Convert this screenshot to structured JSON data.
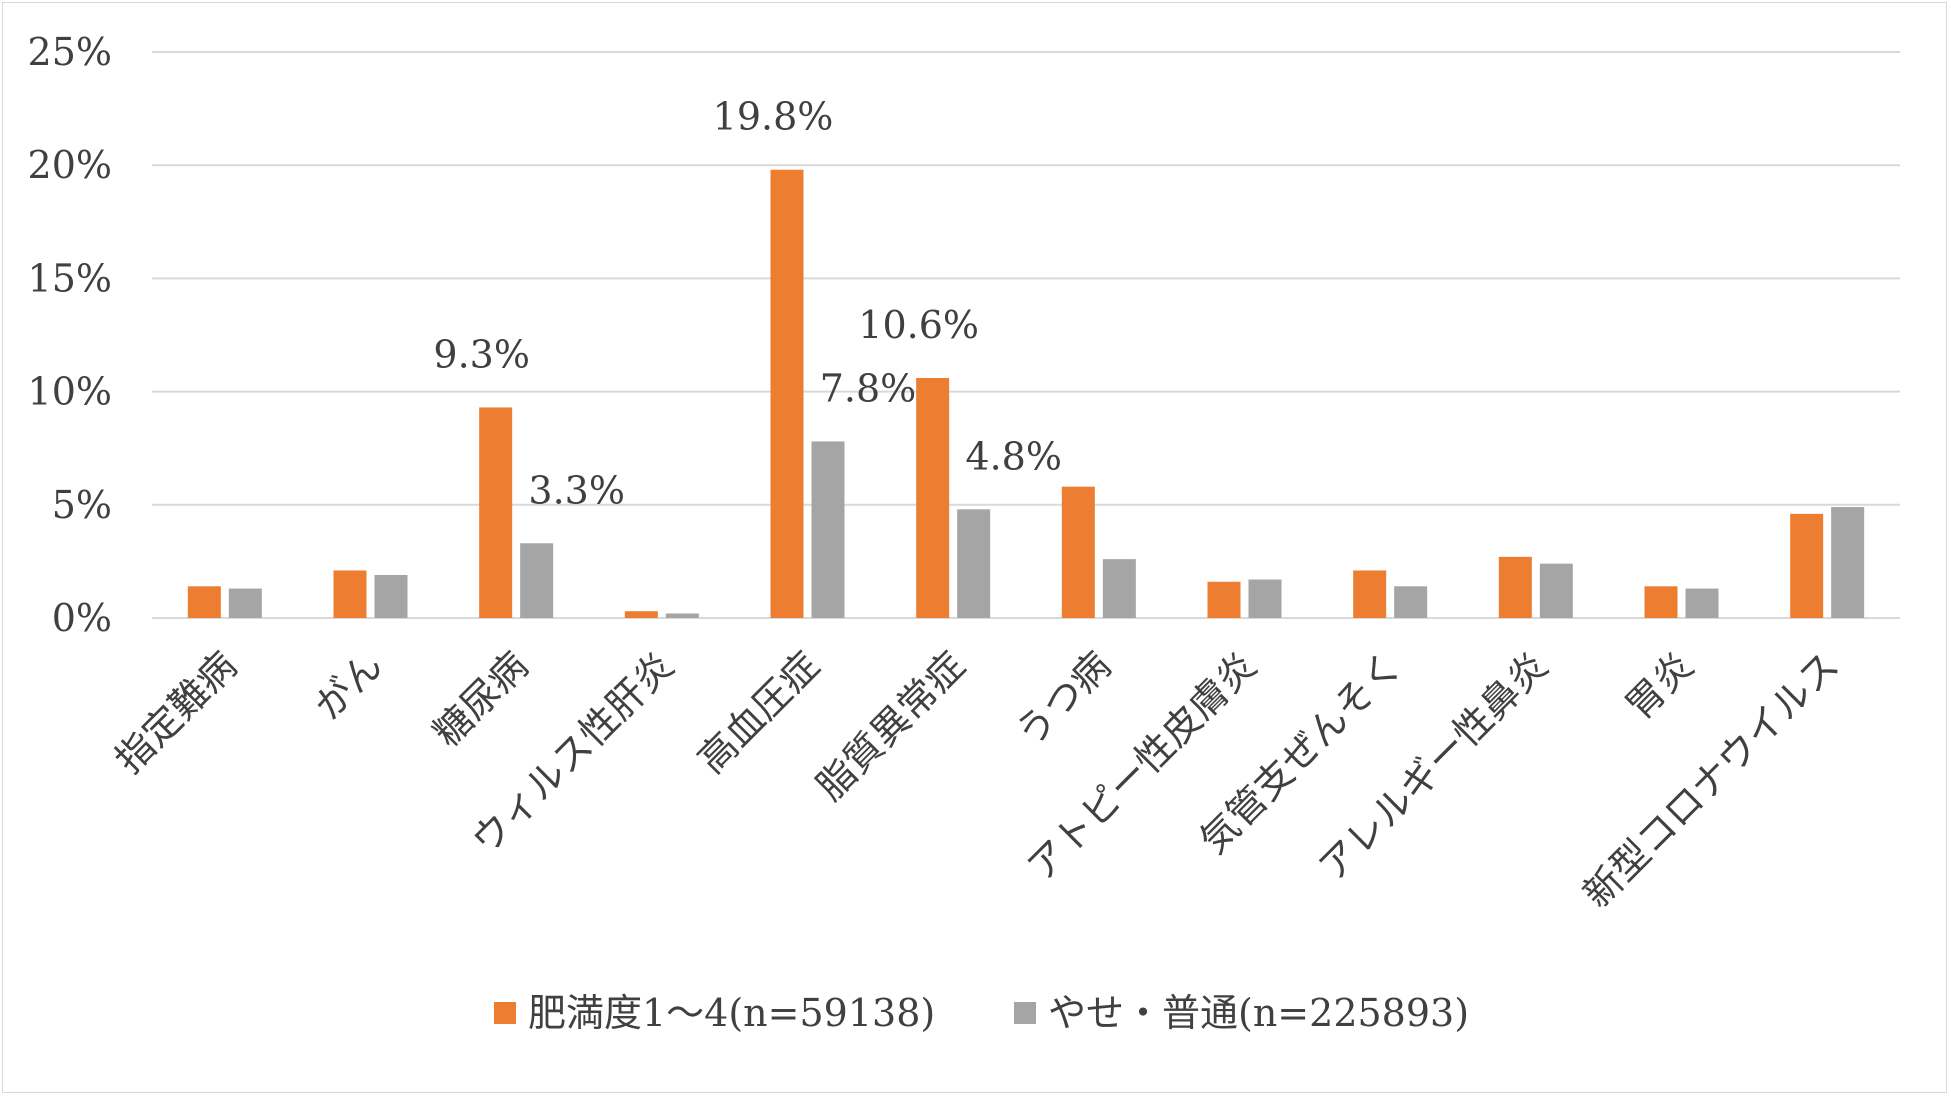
{
  "chart_data": {
    "type": "bar",
    "title": "",
    "xlabel": "",
    "ylabel": "",
    "ylim": [
      0,
      25
    ],
    "y_ticks": [
      "0%",
      "5%",
      "10%",
      "15%",
      "20%",
      "25%"
    ],
    "y_tick_values": [
      0,
      5,
      10,
      15,
      20,
      25
    ],
    "grid": true,
    "legend_position": "bottom",
    "categories": [
      "指定難病",
      "がん",
      "糖尿病",
      "ウィルス性肝炎",
      "高血圧症",
      "脂質異常症",
      "うつ病",
      "アトピー性皮膚炎",
      "気管支ぜんそく",
      "アレルギー性鼻炎",
      "胃炎",
      "新型コロナウイルス"
    ],
    "series": [
      {
        "name": "肥満度1～4(n=59138)",
        "color": "#ed7d31",
        "values": [
          1.4,
          2.1,
          9.3,
          0.3,
          19.8,
          10.6,
          5.8,
          1.6,
          2.1,
          2.7,
          1.4,
          4.6
        ],
        "data_labels": [
          "",
          "",
          "9.3%",
          "",
          "19.8%",
          "10.6%",
          "",
          "",
          "",
          "",
          "",
          ""
        ]
      },
      {
        "name": "やせ・普通(n=225893)",
        "color": "#a5a5a5",
        "values": [
          1.3,
          1.9,
          3.3,
          0.2,
          7.8,
          4.8,
          2.6,
          1.7,
          1.4,
          2.4,
          1.3,
          4.9
        ],
        "data_labels": [
          "",
          "",
          "3.3%",
          "",
          "7.8%",
          "4.8%",
          "",
          "",
          "",
          "",
          "",
          ""
        ]
      }
    ]
  },
  "style": {
    "grid_color": "#d9d9d9",
    "text_color": "#404040"
  }
}
